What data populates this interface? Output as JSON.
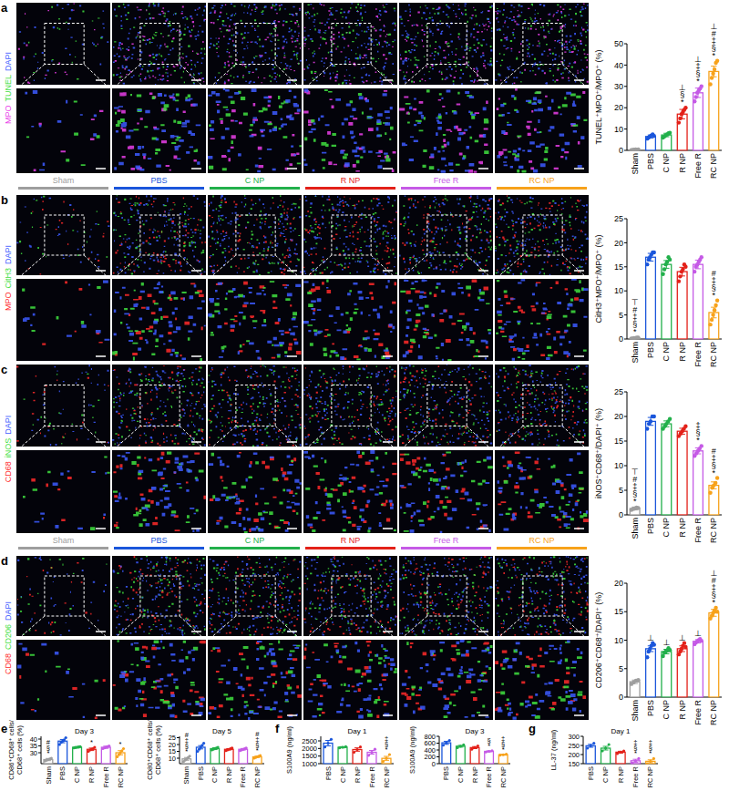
{
  "group_headers": {
    "names": [
      "Sham",
      "PBS",
      "C NP",
      "R NP",
      "Free R",
      "RC NP"
    ],
    "colors": [
      "#9e9e9e",
      "#1a56db",
      "#22b04b",
      "#e32119",
      "#c55ae6",
      "#f7a21b"
    ]
  },
  "image_panels": [
    {
      "panel_label": "a",
      "stains": [
        {
          "text": "MPO",
          "color": "#e83ee8"
        },
        {
          "text": "TUNEL",
          "color": "#3fe03f"
        },
        {
          "text": "DAPI",
          "color": "#3c5bff"
        }
      ]
    },
    {
      "panel_label": "b",
      "stains": [
        {
          "text": "MPO",
          "color": "#ff2a2a"
        },
        {
          "text": "CitH3",
          "color": "#3fe03f"
        },
        {
          "text": "DAPI",
          "color": "#3c5bff"
        }
      ]
    },
    {
      "panel_label": "c",
      "stains": [
        {
          "text": "CD68",
          "color": "#ff2a2a"
        },
        {
          "text": "iNOS",
          "color": "#3fe03f"
        },
        {
          "text": "DAPI",
          "color": "#3c5bff"
        }
      ]
    },
    {
      "panel_label": "d",
      "stains": [
        {
          "text": "CD68",
          "color": "#ff2a2a"
        },
        {
          "text": "CD206",
          "color": "#3fe03f"
        },
        {
          "text": "DAPI",
          "color": "#3c5bff"
        }
      ]
    }
  ],
  "chart_data": [
    {
      "type": "bar",
      "y_label": [
        "TUNEL⁺MPO⁺/MPO⁺ (%)"
      ],
      "categories": [
        "Sham",
        "PBS",
        "C NP",
        "R NP",
        "Free R",
        "RC NP"
      ],
      "values": [
        0.3,
        6.5,
        7.2,
        17,
        27,
        37
      ],
      "errors": [
        0.2,
        0.7,
        0.8,
        2.2,
        2.2,
        2.5
      ],
      "points": [
        [
          0.1,
          0.2,
          0.3,
          0.4,
          0.3,
          0.5
        ],
        [
          5.5,
          6.0,
          6.5,
          7.0,
          7.5,
          6.8
        ],
        [
          6,
          6.5,
          7,
          7.5,
          8,
          8.2
        ],
        [
          13,
          15,
          17,
          18,
          19,
          20
        ],
        [
          23,
          25,
          27,
          28,
          29,
          30
        ],
        [
          31,
          34,
          36,
          38,
          41,
          42
        ]
      ],
      "annotations": [
        null,
        null,
        null,
        [
          "⊥",
          "§",
          "*"
        ],
        [
          "⊥",
          "‡",
          "§",
          "*"
        ],
        [
          "⊥",
          "#",
          "‡",
          "§",
          "*"
        ]
      ],
      "colors": [
        "#9e9e9e",
        "#1a56db",
        "#22b04b",
        "#e32119",
        "#c55ae6",
        "#f7a21b"
      ],
      "ylim": [
        0,
        50
      ],
      "yticks": [
        0,
        10,
        20,
        30,
        40,
        50
      ]
    },
    {
      "type": "bar",
      "y_label": [
        "CitH3⁺MPO⁺/MPO⁺ (%)"
      ],
      "categories": [
        "Sham",
        "PBS",
        "C NP",
        "R NP",
        "Free R",
        "RC NP"
      ],
      "values": [
        0.2,
        17,
        15.5,
        14,
        15.5,
        5.5
      ],
      "errors": [
        0.1,
        0.8,
        0.8,
        0.9,
        0.9,
        1.1
      ],
      "points": [
        [
          0.1,
          0.1,
          0.2,
          0.2,
          0.3,
          0.3
        ],
        [
          15.5,
          16.5,
          17,
          17.5,
          18,
          18
        ],
        [
          13.5,
          14.5,
          15.5,
          16,
          17,
          16.5
        ],
        [
          12,
          13,
          14,
          14.5,
          15.5,
          15
        ],
        [
          14,
          15,
          15.5,
          16,
          16.5,
          17
        ],
        [
          3,
          4,
          5,
          6,
          7,
          8
        ]
      ],
      "annotations": [
        [
          "⊤",
          "#",
          "‡",
          "§",
          "*"
        ],
        null,
        null,
        null,
        null,
        [
          "#",
          "‡",
          "§",
          "*"
        ]
      ],
      "colors": [
        "#9e9e9e",
        "#1a56db",
        "#22b04b",
        "#e32119",
        "#c55ae6",
        "#f7a21b"
      ],
      "ylim": [
        0,
        25
      ],
      "yticks": [
        0,
        5,
        10,
        15,
        20,
        25
      ]
    },
    {
      "type": "bar",
      "y_label": [
        "iNOS⁺CD68⁺/DAPI⁺ (%)"
      ],
      "categories": [
        "Sham",
        "PBS",
        "C NP",
        "R NP",
        "Free R",
        "RC NP"
      ],
      "values": [
        1.3,
        19,
        18.5,
        17,
        13,
        6
      ],
      "errors": [
        0.3,
        0.8,
        0.6,
        0.6,
        0.6,
        0.7
      ],
      "points": [
        [
          1.0,
          1.2,
          1.3,
          1.5,
          1.4
        ],
        [
          17.5,
          18.5,
          19,
          20,
          20
        ],
        [
          17.5,
          18,
          18.5,
          19,
          19.5
        ],
        [
          16,
          16.5,
          17,
          17.5,
          18
        ],
        [
          12,
          12.5,
          13,
          13.5,
          14
        ],
        [
          4.5,
          5.5,
          6,
          6.5,
          7.5
        ]
      ],
      "annotations": [
        [
          "⊤",
          "#",
          "‡",
          "§",
          "*"
        ],
        null,
        null,
        null,
        [
          "‡",
          "§",
          "*"
        ],
        [
          "#",
          "‡",
          "§",
          "*"
        ]
      ],
      "colors": [
        "#9e9e9e",
        "#1a56db",
        "#22b04b",
        "#e32119",
        "#c55ae6",
        "#f7a21b"
      ],
      "ylim": [
        0,
        25
      ],
      "yticks": [
        0,
        5,
        10,
        15,
        20,
        25
      ]
    },
    {
      "type": "bar",
      "y_label": [
        "CD206⁺CD68⁺/DAPI⁺ (%)"
      ],
      "categories": [
        "Sham",
        "PBS",
        "C NP",
        "R NP",
        "Free R",
        "RC NP"
      ],
      "values": [
        2.7,
        8.5,
        8,
        8.5,
        9.8,
        14.8
      ],
      "errors": [
        0.3,
        0.5,
        0.4,
        0.5,
        0.3,
        0.6
      ],
      "points": [
        [
          2.3,
          2.6,
          2.9,
          3.0
        ],
        [
          7,
          8,
          8.5,
          9,
          9.5,
          9.2
        ],
        [
          7.2,
          7.8,
          8,
          8.2,
          8.6,
          8.3
        ],
        [
          7.5,
          8,
          8.5,
          9,
          9.5,
          8.8
        ],
        [
          9.3,
          9.6,
          9.8,
          10,
          10.2,
          9.9
        ],
        [
          13.8,
          14.3,
          14.8,
          15.2,
          15.7,
          15
        ]
      ],
      "annotations": [
        null,
        [
          "⊥"
        ],
        [
          "⊥"
        ],
        [
          "⊥"
        ],
        [
          "⊥"
        ],
        [
          "⊥",
          "#",
          "‡",
          "§",
          "*"
        ]
      ],
      "colors": [
        "#9e9e9e",
        "#1a56db",
        "#22b04b",
        "#e32119",
        "#c55ae6",
        "#f7a21b"
      ],
      "ylim": [
        0,
        20
      ],
      "yticks": [
        0,
        5,
        10,
        15,
        20
      ]
    },
    {
      "type": "bar",
      "panel_label": "e",
      "title": "Day 3",
      "y_label": [
        "CD86⁺CD68⁺ cells/",
        "CD68⁺ cells (%)"
      ],
      "categories": [
        "Sham",
        "PBS",
        "C NP",
        "R NP",
        "Free R",
        "RC NP"
      ],
      "values": [
        25,
        38.5,
        34,
        32.5,
        34,
        30
      ],
      "errors": [
        0.8,
        1.2,
        0.5,
        0.9,
        0.8,
        1.5
      ],
      "points": [
        [
          24,
          24.5,
          25,
          25.5,
          26
        ],
        [
          36,
          37.5,
          38.5,
          39.5,
          41
        ],
        [
          33.5,
          33.8,
          34,
          34.2,
          34.5
        ],
        [
          31,
          32,
          32.5,
          33,
          34
        ],
        [
          33,
          33.5,
          34,
          34.5,
          35
        ],
        [
          27,
          28.5,
          30,
          31.5,
          33
        ]
      ],
      "annotations": [
        [
          "#",
          "§",
          "*"
        ],
        null,
        null,
        [
          "*"
        ],
        null,
        [
          "*"
        ]
      ],
      "colors": [
        "#9e9e9e",
        "#1a56db",
        "#22b04b",
        "#e32119",
        "#c55ae6",
        "#f7a21b"
      ],
      "ylim": [
        22,
        42
      ],
      "yticks": [
        30,
        35,
        40
      ]
    },
    {
      "type": "bar",
      "title": "Day 5",
      "y_label": [
        "CD80⁺CD68⁺ cells/",
        "CD68⁺ cells (%)"
      ],
      "categories": [
        "Sham",
        "PBS",
        "C NP",
        "R NP",
        "Free R",
        "RC NP"
      ],
      "values": [
        9.5,
        18,
        17,
        16.5,
        16.5,
        11
      ],
      "errors": [
        1,
        1.2,
        0.7,
        0.5,
        0.6,
        0.5
      ],
      "points": [
        [
          7.5,
          8.5,
          9.5,
          10.5,
          11.5
        ],
        [
          15,
          16.5,
          18,
          19.5,
          21
        ],
        [
          16,
          16.5,
          17,
          17.5,
          18
        ],
        [
          15.5,
          16,
          16.5,
          17,
          17.5
        ],
        [
          15.5,
          16,
          16.5,
          17,
          17.5
        ],
        [
          10,
          10.5,
          11,
          11.5,
          12
        ]
      ],
      "annotations": [
        [
          "#",
          "‡",
          "§",
          "*"
        ],
        null,
        null,
        null,
        null,
        [
          "#",
          "‡",
          "§",
          "*"
        ]
      ],
      "colors": [
        "#9e9e9e",
        "#1a56db",
        "#22b04b",
        "#e32119",
        "#c55ae6",
        "#f7a21b"
      ],
      "ylim": [
        6,
        26
      ],
      "yticks": [
        10,
        15,
        20,
        25
      ]
    },
    {
      "type": "bar",
      "panel_label": "f",
      "title": "Day 1",
      "y_label": [
        "S100A9 (ng/ml)"
      ],
      "categories": [
        "PBS",
        "C NP",
        "R NP",
        "Free R",
        "RC NP"
      ],
      "values": [
        2350,
        2080,
        1930,
        1750,
        1350
      ],
      "errors": [
        180,
        40,
        110,
        120,
        130
      ],
      "points": [
        [
          2100,
          2350,
          2600
        ],
        [
          2040,
          2080,
          2120
        ],
        [
          1750,
          1930,
          2100
        ],
        [
          1550,
          1750,
          1950
        ],
        [
          1150,
          1350,
          1600
        ]
      ],
      "annotations": [
        null,
        null,
        null,
        null,
        [
          "‡",
          "§",
          "*"
        ]
      ],
      "colors": [
        "#1a56db",
        "#22b04b",
        "#e32119",
        "#c55ae6",
        "#f7a21b"
      ],
      "ylim": [
        1000,
        2800
      ],
      "yticks": [
        1000,
        1500,
        2000,
        2500
      ]
    },
    {
      "type": "bar",
      "title": "Day 3",
      "y_label": [
        "S100A9 (ng/ml)"
      ],
      "categories": [
        "PBS",
        "C NP",
        "R NP",
        "Free R",
        "RC NP"
      ],
      "values": [
        610,
        510,
        470,
        360,
        260
      ],
      "errors": [
        45,
        25,
        30,
        15,
        10
      ],
      "points": [
        [
          540,
          610,
          680
        ],
        [
          470,
          510,
          550
        ],
        [
          420,
          470,
          520
        ],
        [
          340,
          360,
          380
        ],
        [
          250,
          260,
          275
        ]
      ],
      "annotations": [
        null,
        null,
        null,
        [
          "§",
          "*"
        ],
        [
          "‡",
          "§",
          "*"
        ]
      ],
      "colors": [
        "#1a56db",
        "#22b04b",
        "#e32119",
        "#c55ae6",
        "#f7a21b"
      ],
      "ylim": [
        0,
        800
      ],
      "yticks": [
        0,
        200,
        400,
        600,
        800
      ]
    },
    {
      "type": "bar",
      "panel_label": "g",
      "title": "Day 1",
      "y_label": [
        "LL-37 (ng/ml)"
      ],
      "categories": [
        "PBS",
        "C NP",
        "R NP",
        "Free R",
        "RC NP"
      ],
      "values": [
        248,
        235,
        213,
        166,
        163
      ],
      "errors": [
        8,
        10,
        5,
        8,
        8
      ],
      "points": [
        [
          235,
          248,
          262
        ],
        [
          220,
          235,
          255
        ],
        [
          205,
          213,
          220
        ],
        [
          153,
          165,
          178
        ],
        [
          150,
          163,
          178
        ]
      ],
      "annotations": [
        null,
        null,
        null,
        [
          "‡",
          "§",
          "*"
        ],
        [
          "‡",
          "§",
          "*"
        ]
      ],
      "colors": [
        "#1a56db",
        "#22b04b",
        "#e32119",
        "#c55ae6",
        "#f7a21b"
      ],
      "ylim": [
        150,
        300
      ],
      "yticks": [
        150,
        200,
        250,
        300
      ]
    }
  ]
}
